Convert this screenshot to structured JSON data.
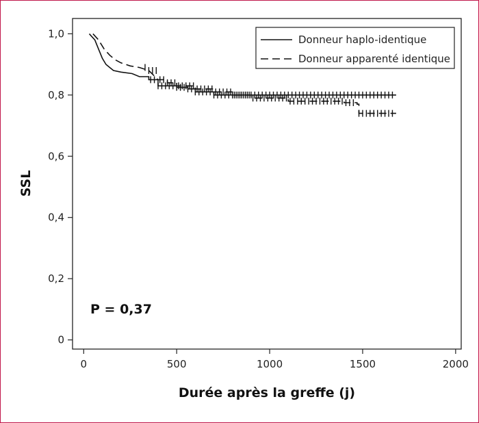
{
  "chart_data": {
    "type": "line",
    "title": "",
    "xlabel": "Durée après la greffe (j)",
    "ylabel": "SSL",
    "xlim": [
      -60,
      2030
    ],
    "ylim": [
      -0.03,
      1.05
    ],
    "x_ticks": [
      0,
      500,
      1000,
      1500,
      2000
    ],
    "x_tick_labels": [
      "0",
      "500",
      "1000",
      "1500",
      "2000"
    ],
    "y_ticks": [
      0,
      0.2,
      0.4,
      0.6,
      0.8,
      1.0
    ],
    "y_tick_labels": [
      "0",
      "0,2",
      "0,4",
      "0,6",
      "0,8",
      "1,0"
    ],
    "grid": false,
    "legend_position": "top-right",
    "annotation": "P = 0,37",
    "series": [
      {
        "name": "Donneur haplo-identique",
        "style": "solid",
        "color": "#111111",
        "x": [
          30,
          60,
          80,
          100,
          120,
          140,
          160,
          200,
          260,
          300,
          350,
          400,
          500,
          560,
          600,
          700,
          800,
          900,
          1000,
          1200,
          1400,
          1470,
          1480,
          1680
        ],
        "y": [
          1.0,
          0.98,
          0.95,
          0.92,
          0.9,
          0.89,
          0.88,
          0.875,
          0.87,
          0.86,
          0.85,
          0.83,
          0.825,
          0.82,
          0.81,
          0.8,
          0.8,
          0.8,
          0.8,
          0.8,
          0.8,
          0.8,
          0.8,
          0.8
        ],
        "censor_x": [
          360,
          380,
          400,
          420,
          440,
          460,
          480,
          500,
          520,
          540,
          560,
          580,
          600,
          620,
          640,
          660,
          680,
          700,
          720,
          740,
          760,
          780,
          800,
          820,
          840,
          860,
          880,
          900,
          920,
          940,
          960,
          980,
          1000,
          1020,
          1040,
          1060,
          1080,
          1100,
          1120,
          1140,
          1160,
          1180,
          1200,
          1220,
          1240,
          1260,
          1280,
          1300,
          1320,
          1340,
          1360,
          1380,
          1400,
          1420,
          1440,
          1460,
          1480,
          1500,
          1520,
          1540,
          1560,
          1580,
          1600,
          1620,
          1640,
          1660
        ]
      },
      {
        "name": "Donneur apparenté identique",
        "style": "dashed",
        "color": "#111111",
        "x": [
          50,
          80,
          110,
          140,
          170,
          200,
          250,
          300,
          350,
          400,
          450,
          500,
          600,
          700,
          800,
          900,
          1000,
          1100,
          1200,
          1300,
          1400,
          1470,
          1480,
          1680
        ],
        "y": [
          1.0,
          0.98,
          0.95,
          0.93,
          0.915,
          0.905,
          0.895,
          0.89,
          0.88,
          0.85,
          0.84,
          0.83,
          0.82,
          0.81,
          0.8,
          0.79,
          0.79,
          0.78,
          0.78,
          0.78,
          0.775,
          0.77,
          0.74,
          0.74
        ],
        "censor_x": [
          330,
          350,
          370,
          390,
          410,
          430,
          450,
          470,
          490,
          510,
          530,
          550,
          570,
          590,
          610,
          630,
          650,
          670,
          690,
          710,
          730,
          750,
          770,
          790,
          810,
          830,
          850,
          870,
          890,
          910,
          930,
          950,
          970,
          990,
          1010,
          1030,
          1050,
          1070,
          1090,
          1110,
          1130,
          1150,
          1170,
          1190,
          1210,
          1230,
          1250,
          1270,
          1290,
          1310,
          1330,
          1350,
          1370,
          1390,
          1410,
          1430,
          1450,
          1480,
          1500,
          1520,
          1540,
          1560,
          1580,
          1600,
          1620,
          1640,
          1660
        ]
      }
    ]
  },
  "legend": {
    "items": [
      {
        "label": "Donneur haplo-identique",
        "style": "solid"
      },
      {
        "label": "Donneur apparenté identique",
        "style": "dashed"
      }
    ]
  },
  "colors": {
    "frame": "#c0164a",
    "ink": "#111111",
    "background": "#ffffff"
  }
}
